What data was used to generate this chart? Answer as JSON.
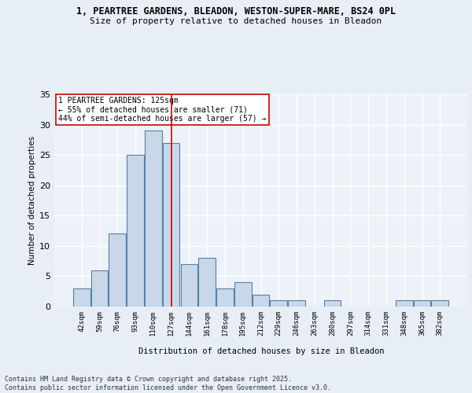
{
  "title1": "1, PEARTREE GARDENS, BLEADON, WESTON-SUPER-MARE, BS24 0PL",
  "title2": "Size of property relative to detached houses in Bleadon",
  "xlabel": "Distribution of detached houses by size in Bleadon",
  "ylabel": "Number of detached properties",
  "bin_labels": [
    "42sqm",
    "59sqm",
    "76sqm",
    "93sqm",
    "110sqm",
    "127sqm",
    "144sqm",
    "161sqm",
    "178sqm",
    "195sqm",
    "212sqm",
    "229sqm",
    "246sqm",
    "263sqm",
    "280sqm",
    "297sqm",
    "314sqm",
    "331sqm",
    "348sqm",
    "365sqm",
    "382sqm"
  ],
  "bar_values": [
    3,
    6,
    12,
    25,
    29,
    27,
    7,
    8,
    3,
    4,
    2,
    1,
    1,
    0,
    1,
    0,
    0,
    0,
    1,
    1,
    1
  ],
  "bar_color": "#c8d8e8",
  "bar_edge_color": "#5580aa",
  "vline_x": 5,
  "vline_color": "#cc0000",
  "annotation_text": "1 PEARTREE GARDENS: 125sqm\n← 55% of detached houses are smaller (71)\n44% of semi-detached houses are larger (57) →",
  "annotation_box_color": "#ffffff",
  "annotation_box_edge": "#cc0000",
  "ylim": [
    0,
    35
  ],
  "yticks": [
    0,
    5,
    10,
    15,
    20,
    25,
    30,
    35
  ],
  "footer": "Contains HM Land Registry data © Crown copyright and database right 2025.\nContains public sector information licensed under the Open Government Licence v3.0.",
  "bg_color": "#e8eef6",
  "plot_bg_color": "#edf2f8",
  "grid_color": "#ffffff"
}
